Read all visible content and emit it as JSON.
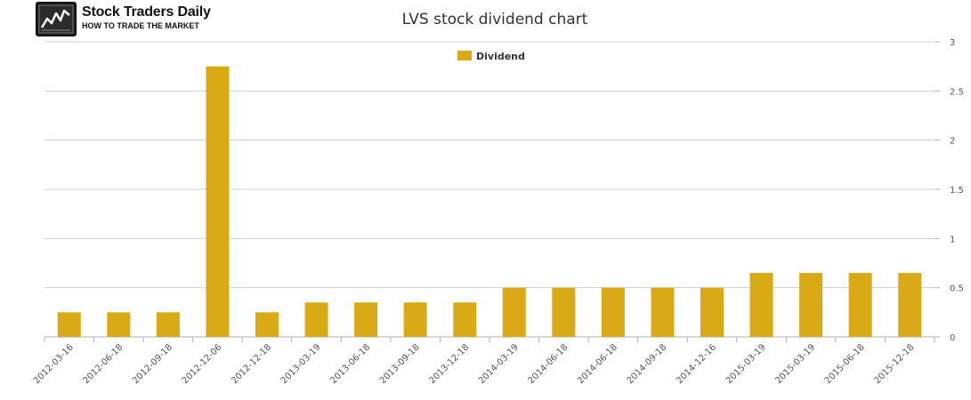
{
  "logo": {
    "title": "Stock Traders Daily",
    "tagline": "HOW TO TRADE THE MARKET"
  },
  "chart_data": {
    "type": "bar",
    "title": "LVS stock dividend chart",
    "categories": [
      "2012-03-16",
      "2012-06-18",
      "2012-09-18",
      "2012-12-06",
      "2012-12-18",
      "2013-03-19",
      "2013-06-18",
      "2013-09-18",
      "2013-12-18",
      "2014-03-19",
      "2014-06-18",
      "2014-06-18",
      "2014-09-18",
      "2014-12-16",
      "2015-03-19",
      "2015-03-19",
      "2015-06-18",
      "2015-12-18"
    ],
    "series": [
      {
        "name": "Dividend",
        "color": "#DAA916",
        "values": [
          0.25,
          0.25,
          0.25,
          2.75,
          0.25,
          0.35,
          0.35,
          0.35,
          0.35,
          0.5,
          0.5,
          0.5,
          0.5,
          0.5,
          0.65,
          0.65,
          0.65,
          0.65
        ]
      }
    ],
    "yticks": [
      "0",
      "0.5",
      "1",
      "1.5",
      "2",
      "2.5",
      "3"
    ],
    "ylim": [
      0,
      3
    ],
    "yaxis_side": "right",
    "grid": true,
    "legend_position": "top-center"
  }
}
